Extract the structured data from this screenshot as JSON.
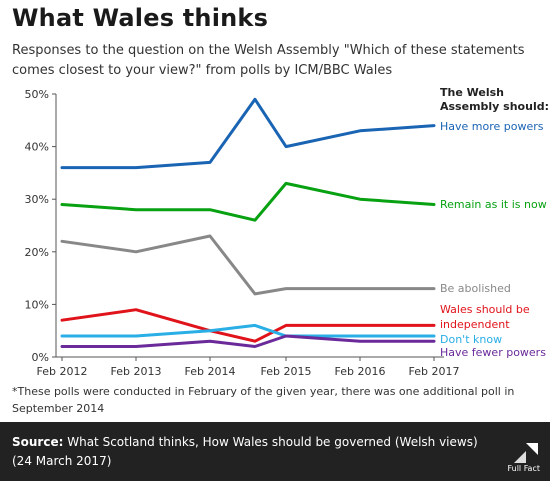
{
  "title": "What Wales thinks",
  "subtitle": "Responses to the question on the Welsh Assembly \"Which of these statements comes closest to your view?\" from polls by ICM/BBC Wales",
  "footnote": "*These polls were conducted in February of the given year, there was one additional poll in September 2014",
  "source": {
    "label": "Source:",
    "text": "What Scotland thinks, How Wales should be governed (Welsh views) (24 March 2017)"
  },
  "logo_text": "Full Fact",
  "chart_data": {
    "type": "line",
    "x": [
      "Feb 2012",
      "Feb 2013",
      "Feb 2014",
      "Sep 2014",
      "Feb 2015",
      "Feb 2016",
      "Feb 2017"
    ],
    "x_tick_labels": [
      "Feb 2012",
      "Feb 2013",
      "Feb 2014",
      "Feb 2015",
      "Feb 2016",
      "Feb 2017"
    ],
    "y_tick_labels": [
      "0%",
      "10%",
      "20%",
      "30%",
      "40%",
      "50%"
    ],
    "ylim": [
      0,
      50
    ],
    "grid": false,
    "legend_title": [
      "The Welsh",
      "Assembly should:"
    ],
    "series": [
      {
        "name": "Have more powers",
        "label_lines": [
          "Have more powers"
        ],
        "color": "#1a64b4",
        "values": [
          36,
          36,
          37,
          49,
          40,
          43,
          44
        ]
      },
      {
        "name": "Remain as it is now",
        "label_lines": [
          "Remain as it is now"
        ],
        "color": "#07a112",
        "values": [
          29,
          28,
          28,
          26,
          33,
          30,
          29
        ]
      },
      {
        "name": "Be abolished",
        "label_lines": [
          "Be abolished"
        ],
        "color": "#888888",
        "values": [
          22,
          20,
          23,
          12,
          13,
          13,
          13
        ]
      },
      {
        "name": "Wales should be independent",
        "label_lines": [
          "Wales should be",
          "independent"
        ],
        "color": "#e0131a",
        "values": [
          7,
          9,
          5,
          3,
          6,
          6,
          6
        ]
      },
      {
        "name": "Don't know",
        "label_lines": [
          "Don't know"
        ],
        "color": "#29aee5",
        "values": [
          4,
          4,
          5,
          6,
          4,
          4,
          4
        ]
      },
      {
        "name": "Have fewer powers",
        "label_lines": [
          "Have fewer powers"
        ],
        "color": "#6a2a9a",
        "values": [
          2,
          2,
          3,
          2,
          4,
          3,
          3
        ]
      }
    ]
  }
}
